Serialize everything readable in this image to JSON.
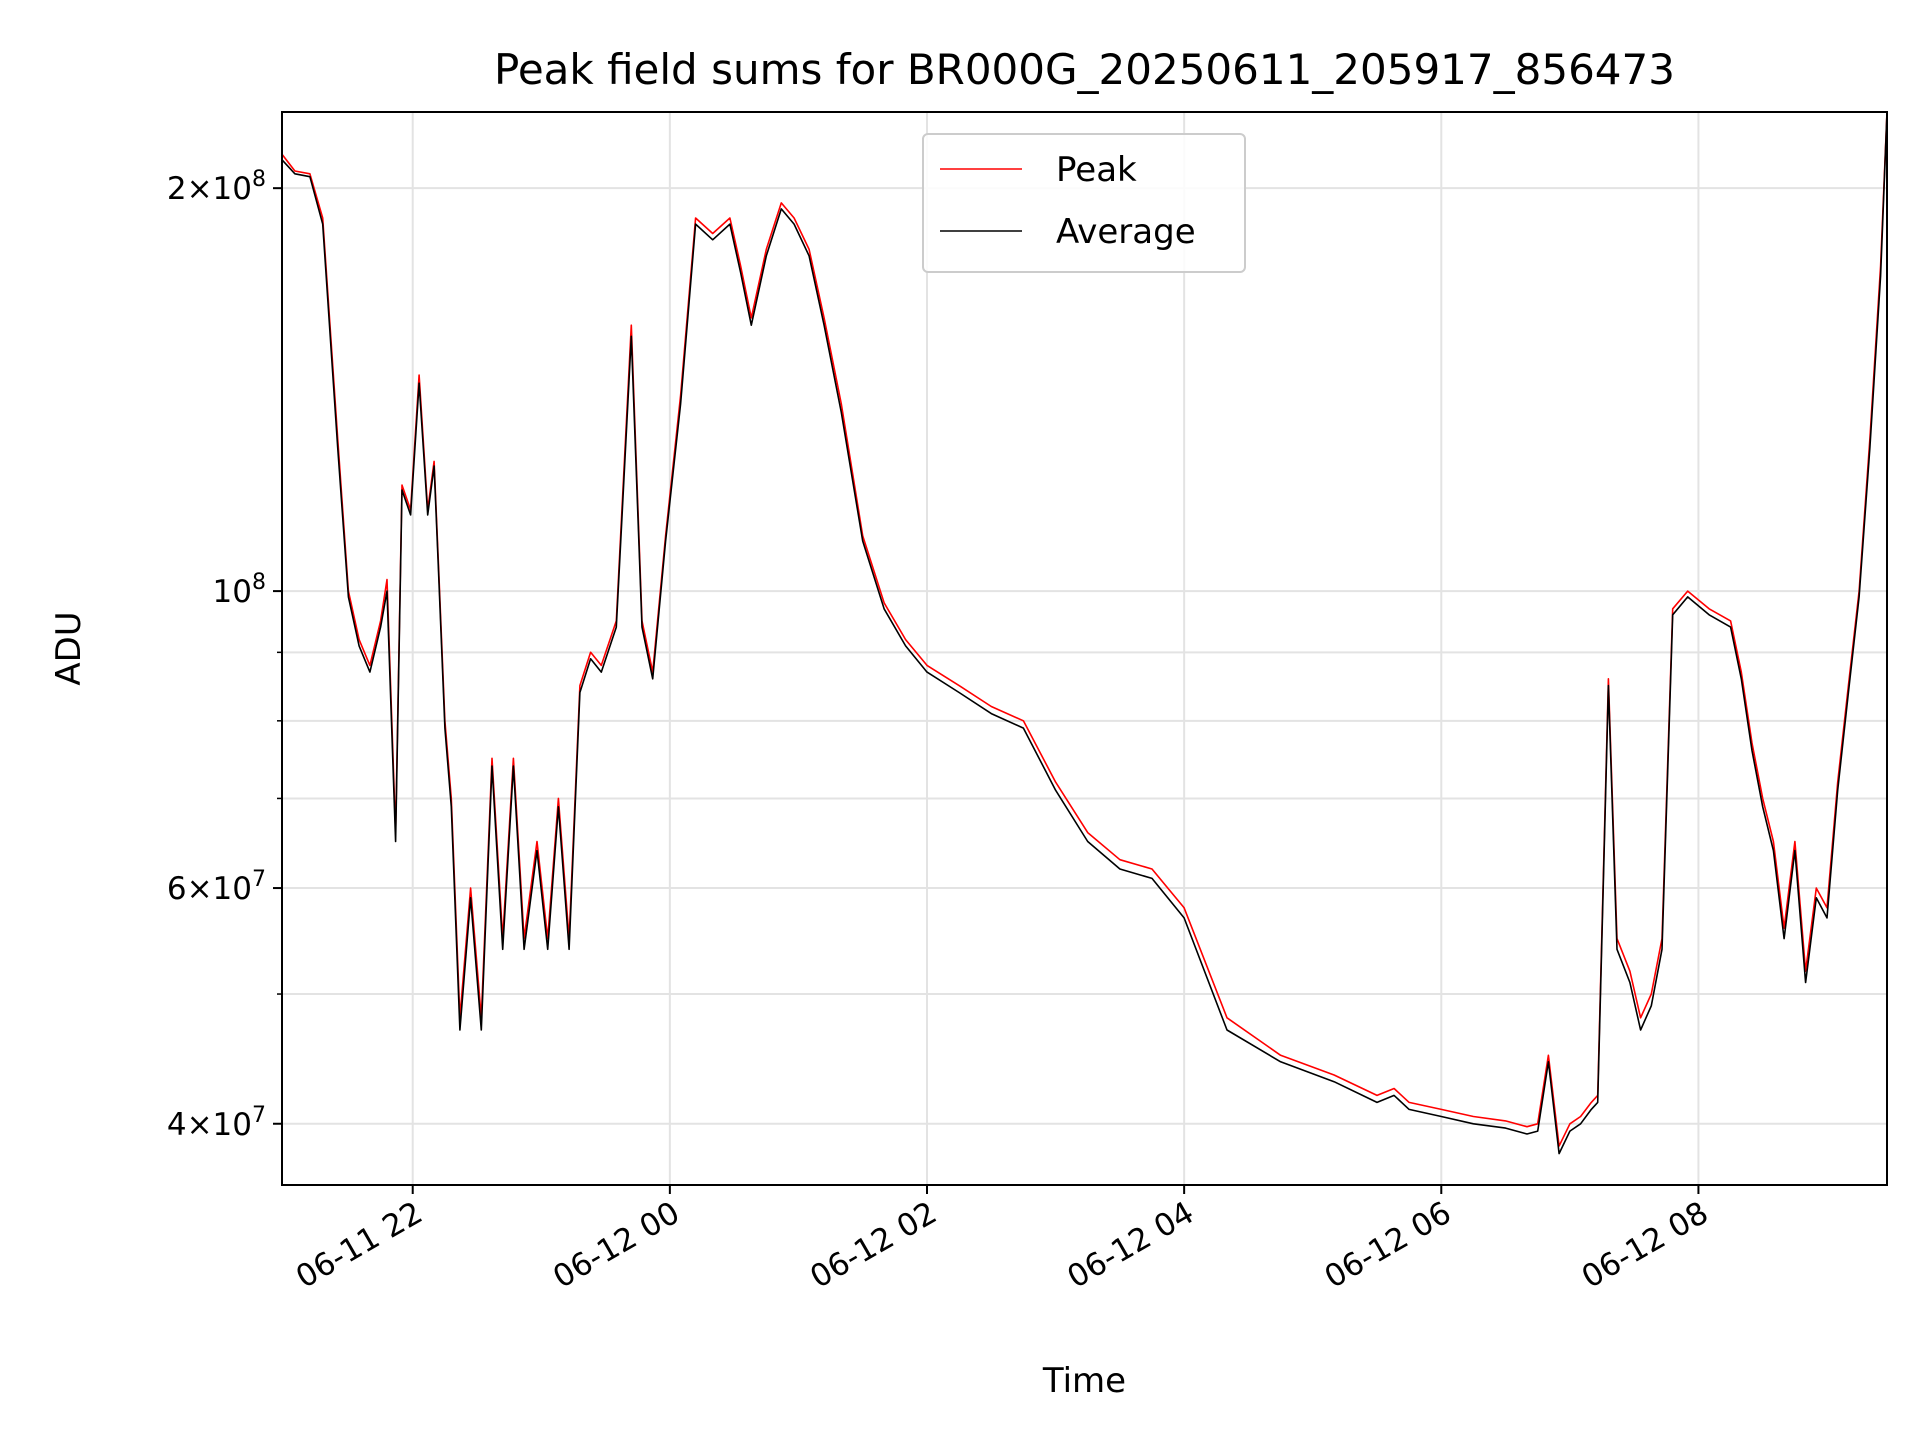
{
  "chart_data": {
    "type": "line",
    "title": "Peak field sums for BR000G_20250611_205917_856473",
    "xlabel": "Time",
    "ylabel": "ADU",
    "yscale": "log",
    "ylim": [
      36000000,
      228000000
    ],
    "xlim": [
      "2025-06-11 20:59",
      "2025-06-12 09:28"
    ],
    "grid": true,
    "legend_position": "top-center",
    "x_ticks": [
      "2025-06-11 22:00",
      "2025-06-12 00:00",
      "2025-06-12 02:00",
      "2025-06-12 04:00",
      "2025-06-12 06:00",
      "2025-06-12 08:00"
    ],
    "x_tick_labels": [
      "06-11 22",
      "06-12 00",
      "06-12 02",
      "06-12 04",
      "06-12 06",
      "06-12 08"
    ],
    "y_ticks": [
      {
        "value": 40000000,
        "mantissa": "4",
        "exponent": "7"
      },
      {
        "value": 60000000,
        "mantissa": "6",
        "exponent": "7"
      },
      {
        "value": 100000000,
        "mantissa": "",
        "exponent": "8"
      },
      {
        "value": 200000000,
        "mantissa": "2",
        "exponent": "8"
      }
    ],
    "y_minor_ticks": [
      50000000,
      70000000,
      80000000,
      90000000
    ],
    "x": [
      "2025-06-11 20:59",
      "2025-06-11 21:05",
      "2025-06-11 21:12",
      "2025-06-11 21:18",
      "2025-06-11 21:25",
      "2025-06-11 21:30",
      "2025-06-11 21:35",
      "2025-06-11 21:40",
      "2025-06-11 21:45",
      "2025-06-11 21:48",
      "2025-06-11 21:52",
      "2025-06-11 21:55",
      "2025-06-11 21:59",
      "2025-06-11 22:03",
      "2025-06-11 22:07",
      "2025-06-11 22:10",
      "2025-06-11 22:12",
      "2025-06-11 22:15",
      "2025-06-11 22:18",
      "2025-06-11 22:22",
      "2025-06-11 22:27",
      "2025-06-11 22:32",
      "2025-06-11 22:37",
      "2025-06-11 22:42",
      "2025-06-11 22:47",
      "2025-06-11 22:52",
      "2025-06-11 22:58",
      "2025-06-11 23:03",
      "2025-06-11 23:08",
      "2025-06-11 23:13",
      "2025-06-11 23:18",
      "2025-06-11 23:23",
      "2025-06-11 23:28",
      "2025-06-11 23:35",
      "2025-06-11 23:42",
      "2025-06-11 23:47",
      "2025-06-11 23:52",
      "2025-06-11 23:58",
      "2025-06-12 00:05",
      "2025-06-12 00:12",
      "2025-06-12 00:20",
      "2025-06-12 00:28",
      "2025-06-12 00:33",
      "2025-06-12 00:38",
      "2025-06-12 00:45",
      "2025-06-12 00:52",
      "2025-06-12 00:58",
      "2025-06-12 01:05",
      "2025-06-12 01:12",
      "2025-06-12 01:20",
      "2025-06-12 01:30",
      "2025-06-12 01:40",
      "2025-06-12 01:50",
      "2025-06-12 02:00",
      "2025-06-12 02:15",
      "2025-06-12 02:30",
      "2025-06-12 02:45",
      "2025-06-12 03:00",
      "2025-06-12 03:15",
      "2025-06-12 03:30",
      "2025-06-12 03:45",
      "2025-06-12 04:00",
      "2025-06-12 04:20",
      "2025-06-12 04:45",
      "2025-06-12 05:10",
      "2025-06-12 05:30",
      "2025-06-12 05:38",
      "2025-06-12 05:45",
      "2025-06-12 06:00",
      "2025-06-12 06:15",
      "2025-06-12 06:30",
      "2025-06-12 06:40",
      "2025-06-12 06:45",
      "2025-06-12 06:50",
      "2025-06-12 06:55",
      "2025-06-12 07:00",
      "2025-06-12 07:05",
      "2025-06-12 07:10",
      "2025-06-12 07:13",
      "2025-06-12 07:18",
      "2025-06-12 07:22",
      "2025-06-12 07:28",
      "2025-06-12 07:33",
      "2025-06-12 07:38",
      "2025-06-12 07:43",
      "2025-06-12 07:48",
      "2025-06-12 07:55",
      "2025-06-12 08:05",
      "2025-06-12 08:15",
      "2025-06-12 08:20",
      "2025-06-12 08:25",
      "2025-06-12 08:30",
      "2025-06-12 08:35",
      "2025-06-12 08:40",
      "2025-06-12 08:45",
      "2025-06-12 08:50",
      "2025-06-12 08:55",
      "2025-06-12 09:00",
      "2025-06-12 09:05",
      "2025-06-12 09:10",
      "2025-06-12 09:15",
      "2025-06-12 09:20",
      "2025-06-12 09:25",
      "2025-06-12 09:28"
    ],
    "series": [
      {
        "name": "Peak",
        "color": "#ff0000",
        "values": [
          212000000,
          206000000,
          205000000,
          190000000,
          130000000,
          100000000,
          92000000,
          88000000,
          95000000,
          102000000,
          66000000,
          120000000,
          115000000,
          145000000,
          115000000,
          125000000,
          105000000,
          80000000,
          70000000,
          48000000,
          60000000,
          48000000,
          75000000,
          55000000,
          75000000,
          55000000,
          65000000,
          55000000,
          70000000,
          55000000,
          85000000,
          90000000,
          88000000,
          95000000,
          158000000,
          95000000,
          87000000,
          110000000,
          140000000,
          190000000,
          185000000,
          190000000,
          175000000,
          160000000,
          180000000,
          195000000,
          190000000,
          180000000,
          160000000,
          138000000,
          110000000,
          98000000,
          92000000,
          88000000,
          85000000,
          82000000,
          80000000,
          72000000,
          66000000,
          63000000,
          62000000,
          58000000,
          48000000,
          45000000,
          43500000,
          42000000,
          42500000,
          41500000,
          41000000,
          40500000,
          40200000,
          39800000,
          40000000,
          45000000,
          38500000,
          40000000,
          40500000,
          41500000,
          42000000,
          86000000,
          55000000,
          52000000,
          48000000,
          50000000,
          55000000,
          97000000,
          100000000,
          97000000,
          95000000,
          87000000,
          77000000,
          70000000,
          65000000,
          56000000,
          65000000,
          52000000,
          60000000,
          58000000,
          72000000,
          85000000,
          100000000,
          130000000,
          175000000,
          228000000
        ]
      },
      {
        "name": "Average",
        "color": "#000000",
        "values": [
          210000000,
          205000000,
          204000000,
          188000000,
          128000000,
          99000000,
          91000000,
          87000000,
          94000000,
          100000000,
          65000000,
          119000000,
          114000000,
          143000000,
          114000000,
          124000000,
          104000000,
          79000000,
          69000000,
          47000000,
          59000000,
          47000000,
          74000000,
          54000000,
          74000000,
          54000000,
          64000000,
          54000000,
          69000000,
          54000000,
          84000000,
          89000000,
          87000000,
          94000000,
          155000000,
          94000000,
          86000000,
          109000000,
          138000000,
          188000000,
          183000000,
          188000000,
          173000000,
          158000000,
          178000000,
          193000000,
          188000000,
          178000000,
          158000000,
          136000000,
          109000000,
          97000000,
          91000000,
          87000000,
          84000000,
          81000000,
          79000000,
          71000000,
          65000000,
          62000000,
          61000000,
          57000000,
          47000000,
          44500000,
          43000000,
          41500000,
          42000000,
          41000000,
          40500000,
          40000000,
          39700000,
          39300000,
          39500000,
          44500000,
          38000000,
          39500000,
          40000000,
          41000000,
          41500000,
          85000000,
          54000000,
          51000000,
          47000000,
          49000000,
          54000000,
          96000000,
          99000000,
          96000000,
          94000000,
          86000000,
          76000000,
          69000000,
          64000000,
          55000000,
          64000000,
          51000000,
          59000000,
          57000000,
          71000000,
          84000000,
          99000000,
          128000000,
          172000000,
          228000000
        ]
      }
    ]
  }
}
